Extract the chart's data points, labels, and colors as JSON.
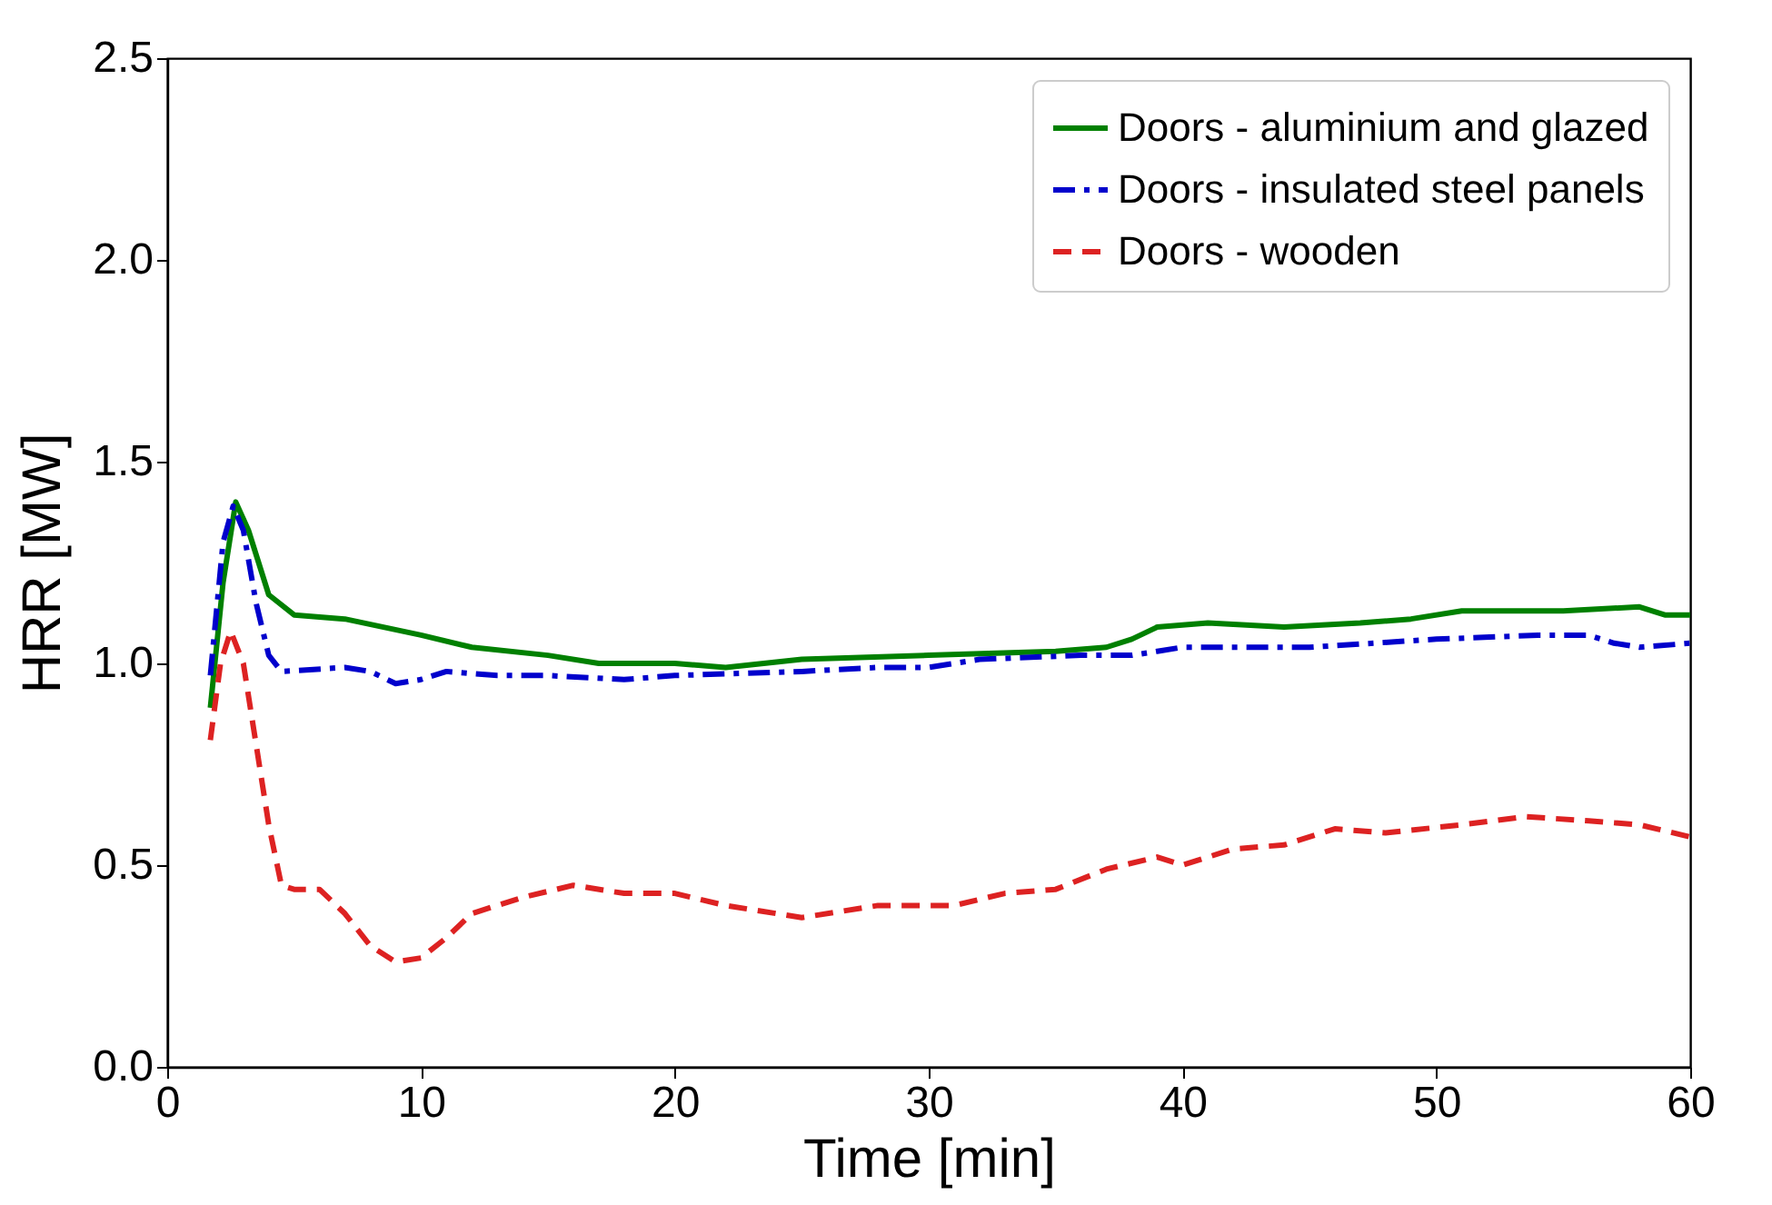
{
  "chart_data": {
    "type": "line",
    "xlabel": "Time [min]",
    "ylabel": "HRR [MW]",
    "xlim": [
      0,
      60
    ],
    "xticks": [
      0,
      10,
      20,
      30,
      40,
      50,
      60
    ],
    "ylim": [
      0,
      2.5
    ],
    "yticks": [
      {
        "value": 0,
        "label": "0.0"
      },
      0.5,
      {
        "value": 1,
        "label": "1.0"
      },
      1.5,
      {
        "value": 2,
        "label": "2.0"
      },
      2.5
    ],
    "grid": false,
    "legend": "top right",
    "marker": "none",
    "series": [
      {
        "name": "Doors - aluminium and glazed",
        "color": "#008000",
        "line_style": "solid",
        "x": [
          1.7,
          2.2,
          2.7,
          3.2,
          4,
          5,
          7,
          10,
          12,
          15,
          17,
          20,
          22,
          25,
          30,
          35,
          37,
          38,
          39,
          41,
          44,
          47,
          49,
          51,
          55,
          58,
          59,
          60
        ],
        "values": [
          0.89,
          1.2,
          1.4,
          1.33,
          1.17,
          1.12,
          1.11,
          1.07,
          1.04,
          1.02,
          1.0,
          1.0,
          0.99,
          1.01,
          1.02,
          1.03,
          1.04,
          1.06,
          1.09,
          1.1,
          1.09,
          1.1,
          1.11,
          1.13,
          1.13,
          1.14,
          1.12,
          1.12
        ]
      },
      {
        "name": "Doors - insulated steel panels",
        "color": "#0000cc",
        "line_style": "dashdot",
        "x": [
          1.7,
          2.2,
          2.6,
          3,
          3.5,
          4,
          4.5,
          7,
          8,
          9,
          10,
          11,
          13,
          15,
          18,
          20,
          25,
          28,
          30,
          32,
          36,
          38,
          39,
          40,
          45,
          50,
          54,
          56,
          57,
          58,
          60
        ],
        "values": [
          0.97,
          1.3,
          1.39,
          1.33,
          1.15,
          1.02,
          0.98,
          0.99,
          0.98,
          0.95,
          0.96,
          0.98,
          0.97,
          0.97,
          0.96,
          0.97,
          0.98,
          0.99,
          0.99,
          1.01,
          1.02,
          1.02,
          1.03,
          1.04,
          1.04,
          1.06,
          1.07,
          1.07,
          1.05,
          1.04,
          1.05
        ]
      },
      {
        "name": "Doors - wooden",
        "color": "#dd2222",
        "line_style": "dashed",
        "x": [
          1.7,
          2.1,
          2.5,
          3,
          3.5,
          4,
          4.5,
          5,
          6,
          7,
          8,
          9,
          10,
          11,
          12,
          14,
          16,
          18,
          20,
          22,
          25,
          28,
          31,
          33,
          35,
          37,
          39,
          40,
          42,
          44,
          46,
          48,
          51,
          53.5,
          56,
          58,
          60
        ],
        "values": [
          0.81,
          1.0,
          1.08,
          1.0,
          0.8,
          0.6,
          0.45,
          0.44,
          0.44,
          0.38,
          0.3,
          0.26,
          0.27,
          0.32,
          0.38,
          0.42,
          0.45,
          0.43,
          0.43,
          0.4,
          0.37,
          0.4,
          0.4,
          0.43,
          0.44,
          0.49,
          0.52,
          0.5,
          0.54,
          0.55,
          0.59,
          0.58,
          0.6,
          0.62,
          0.61,
          0.6,
          0.57
        ]
      }
    ]
  }
}
